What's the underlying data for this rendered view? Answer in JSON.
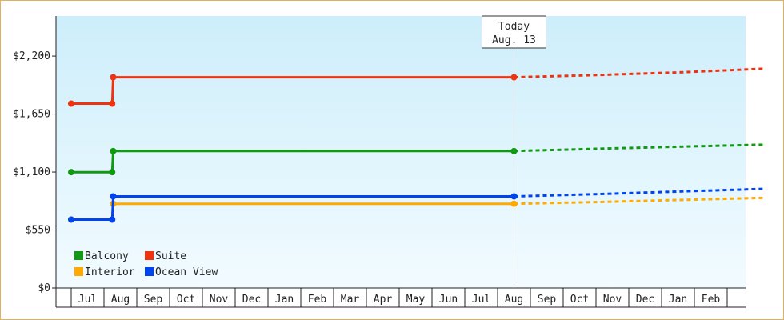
{
  "chart_data": {
    "type": "line",
    "step": true,
    "x_unit": "month",
    "months": [
      "Jul",
      "Aug",
      "Sep",
      "Oct",
      "Nov",
      "Dec",
      "Jan",
      "Feb",
      "Mar",
      "Apr",
      "May",
      "Jun",
      "Jul",
      "Aug",
      "Sep",
      "Oct",
      "Nov",
      "Dec",
      "Jan",
      "Feb"
    ],
    "yticks": [
      "$0",
      "$550",
      "$1,100",
      "$1,650",
      "$2,200"
    ],
    "ytick_values": [
      0,
      550,
      1100,
      1650,
      2200
    ],
    "ylim": [
      0,
      2580
    ],
    "today": {
      "title": "Today",
      "date": "Aug. 13",
      "x": 13.0
    },
    "series": [
      {
        "name": "Balcony",
        "color": "#119911",
        "historic": [
          [
            -0.5,
            1099
          ],
          [
            0.75,
            1099
          ],
          [
            0.78,
            1299
          ],
          [
            13.0,
            1299
          ]
        ],
        "forecast": [
          [
            13.0,
            1299
          ],
          [
            15.5,
            1320
          ],
          [
            18.0,
            1340
          ],
          [
            20.6,
            1360
          ]
        ]
      },
      {
        "name": "Suite",
        "color": "#ee3311",
        "historic": [
          [
            -0.5,
            1749
          ],
          [
            0.75,
            1749
          ],
          [
            0.78,
            1999
          ],
          [
            13.0,
            1999
          ]
        ],
        "forecast": [
          [
            13.0,
            1999
          ],
          [
            15.5,
            2020
          ],
          [
            18.0,
            2045
          ],
          [
            20.6,
            2080
          ]
        ]
      },
      {
        "name": "Interior",
        "color": "#ffaa00",
        "historic": [
          [
            -0.5,
            649
          ],
          [
            0.75,
            649
          ],
          [
            0.78,
            799
          ],
          [
            13.0,
            799
          ]
        ],
        "forecast": [
          [
            13.0,
            799
          ],
          [
            15.5,
            815
          ],
          [
            18.0,
            835
          ],
          [
            20.6,
            855
          ]
        ]
      },
      {
        "name": "Ocean View",
        "color": "#0044ee",
        "historic": [
          [
            -0.5,
            649
          ],
          [
            0.75,
            649
          ],
          [
            0.78,
            869
          ],
          [
            13.0,
            869
          ]
        ],
        "forecast": [
          [
            13.0,
            869
          ],
          [
            15.5,
            890
          ],
          [
            18.0,
            915
          ],
          [
            20.6,
            940
          ]
        ]
      }
    ],
    "markers": [
      [
        -0.5
      ],
      [
        0.75,
        0.78
      ],
      [
        13.0
      ]
    ],
    "legend": {
      "position": "bottom-left",
      "rows": [
        [
          "Balcony",
          "Suite"
        ],
        [
          "Interior",
          "Ocean View"
        ]
      ]
    },
    "grid": false
  },
  "colors": {
    "plot_top": "#cdeefb",
    "plot_bottom": "#f2fbff",
    "border": "#e0b060"
  }
}
